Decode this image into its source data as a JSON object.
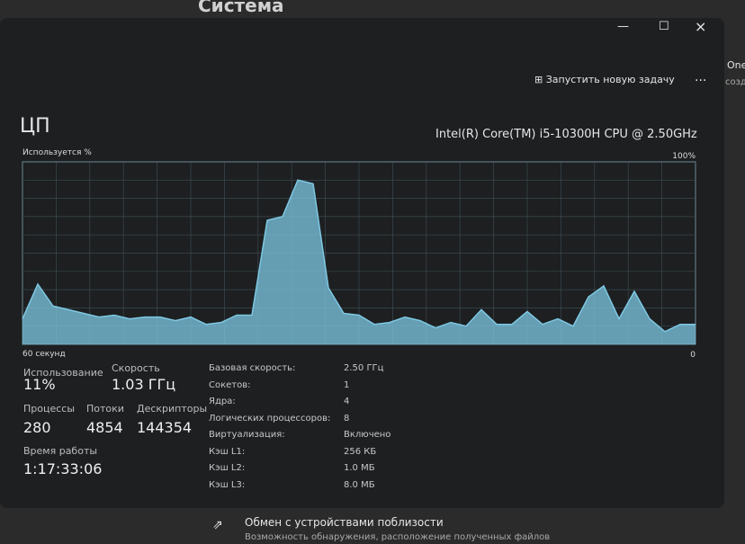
{
  "background": {
    "page_title": "Система",
    "right_fragment_1": "OneD",
    "right_fragment_2": "созда"
  },
  "toolbar": {
    "run_task": "Запустить новую задачу",
    "more": "..."
  },
  "header": {
    "title": "ЦП",
    "cpu_name": "Intel(R) Core(TM) i5-10300H CPU @ 2.50GHz"
  },
  "cpu_graph": {
    "type": "area",
    "ylabel": "Используется %",
    "xlabel": "60 секунд",
    "color": "#7ec8e3",
    "ylim": [
      0,
      100
    ],
    "yticks": [
      0,
      {
        "value": 100,
        "label": "100%"
      }
    ],
    "values": [
      14,
      33,
      21,
      19,
      17,
      15,
      16,
      14,
      15,
      15,
      13,
      15,
      11,
      12,
      16,
      16,
      68,
      70,
      90,
      88,
      31,
      17,
      16,
      11,
      12,
      15,
      13,
      9,
      12,
      10,
      19,
      11,
      11,
      18,
      11,
      14,
      10,
      26,
      32,
      14,
      29,
      14,
      7,
      11,
      11
    ]
  },
  "stats": {
    "usage_label": "Использование",
    "usage": "11%",
    "speed_label": "Скорость",
    "speed": "1.03 ГГц",
    "processes_label": "Процессы",
    "processes": "280",
    "threads_label": "Потоки",
    "threads": "4854",
    "handles_label": "Дескрипторы",
    "handles": "144354",
    "uptime_label": "Время работы",
    "uptime": "1:17:33:06"
  },
  "details": [
    [
      "Базовая скорость:",
      "2.50 ГГц"
    ],
    [
      "Сокетов:",
      "1"
    ],
    [
      "Ядра:",
      "4"
    ],
    [
      "Логических процессоров:",
      "8"
    ],
    [
      "Виртуализация:",
      "Включено"
    ],
    [
      "Кэш L1:",
      "256 КБ"
    ],
    [
      "Кэш L2:",
      "1.0 МБ"
    ],
    [
      "Кэш L3:",
      "8.0 МБ"
    ]
  ],
  "footer": {
    "title": "Обмен с устройствами поблизости",
    "subtitle": "Возможность обнаружения, расположение полученных файлов"
  }
}
